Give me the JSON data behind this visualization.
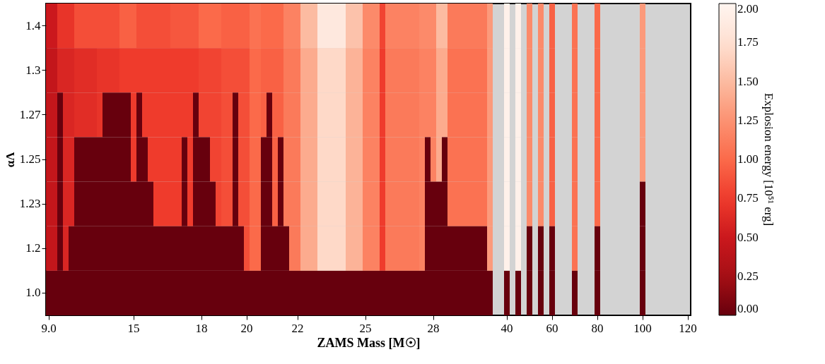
{
  "chart_data": {
    "type": "heatmap",
    "xlabel": "ZAMS Mass [M☉]",
    "ylabel": "αΛ",
    "clabel": "Explosion energy [10⁵¹ erg]",
    "categories": [
      "9.0",
      null,
      null,
      null,
      null,
      null,
      null,
      null,
      null,
      null,
      null,
      null,
      null,
      null,
      null,
      "15",
      null,
      null,
      null,
      null,
      null,
      null,
      null,
      null,
      null,
      null,
      null,
      "18",
      null,
      null,
      null,
      null,
      null,
      null,
      null,
      "20",
      null,
      null,
      null,
      null,
      null,
      null,
      null,
      null,
      "22",
      null,
      null,
      null,
      null,
      null,
      null,
      null,
      null,
      null,
      null,
      null,
      "25",
      null,
      null,
      null,
      null,
      null,
      null,
      null,
      null,
      null,
      null,
      null,
      "28",
      null,
      null,
      null,
      null,
      null,
      null,
      null,
      null,
      null,
      null,
      null,
      null,
      "40",
      null,
      null,
      null,
      null,
      null,
      null,
      null,
      "60",
      null,
      null,
      null,
      null,
      null,
      null,
      null,
      "80",
      null,
      null,
      null,
      null,
      null,
      null,
      null,
      "100",
      null,
      null,
      null,
      null,
      null,
      null,
      null,
      "120"
    ],
    "y_categories": [
      "1.4",
      "1.3",
      "1.27",
      "1.25",
      "1.23",
      "1.2",
      "1.0"
    ],
    "cells": [
      [
        0.5,
        0.5,
        0.7,
        0.7,
        0.7,
        0.85,
        0.85,
        0.85,
        0.85,
        0.85,
        0.85,
        0.85,
        0.85,
        0.95,
        0.95,
        0.95,
        0.85,
        0.85,
        0.85,
        0.85,
        0.85,
        0.85,
        0.9,
        0.9,
        0.9,
        0.9,
        0.9,
        1.0,
        1.0,
        1.0,
        1.0,
        0.95,
        0.95,
        0.95,
        0.95,
        0.95,
        1.05,
        1.05,
        1.0,
        1.0,
        1.0,
        1.0,
        1.15,
        1.15,
        1.15,
        1.5,
        1.5,
        1.5,
        1.85,
        1.85,
        1.85,
        1.85,
        1.85,
        1.55,
        1.55,
        1.55,
        1.2,
        1.2,
        1.2,
        0.8,
        1.15,
        1.15,
        1.15,
        1.15,
        1.15,
        1.15,
        1.2,
        1.2,
        1.2,
        1.5,
        1.5,
        1.1,
        1.1,
        1.1,
        1.1,
        1.1,
        1.1,
        1.1,
        1.3,
        null,
        null,
        1.95,
        null,
        1.95,
        null,
        1.2,
        null,
        1.2,
        null,
        0.95,
        null,
        null,
        null,
        1.05,
        null,
        null,
        null,
        1.0,
        null,
        null,
        null,
        null,
        null,
        null,
        null,
        1.3,
        null,
        null,
        null,
        null,
        null,
        null,
        null,
        null
      ],
      [
        0.45,
        0.45,
        0.6,
        0.6,
        0.6,
        0.65,
        0.65,
        0.65,
        0.65,
        0.7,
        0.7,
        0.7,
        0.7,
        0.75,
        0.75,
        0.75,
        0.75,
        0.75,
        0.75,
        0.75,
        0.75,
        0.75,
        0.75,
        0.75,
        0.75,
        0.75,
        0.75,
        0.8,
        0.8,
        0.8,
        0.8,
        0.85,
        0.85,
        0.85,
        0.85,
        0.85,
        1.0,
        1.0,
        0.95,
        0.95,
        0.95,
        0.95,
        1.1,
        1.1,
        1.1,
        1.4,
        1.4,
        1.4,
        1.7,
        1.7,
        1.7,
        1.7,
        1.7,
        1.45,
        1.45,
        1.45,
        1.15,
        1.15,
        1.15,
        0.75,
        1.1,
        1.1,
        1.1,
        1.1,
        1.1,
        1.1,
        1.15,
        1.15,
        1.15,
        1.4,
        1.4,
        1.05,
        1.05,
        1.05,
        1.05,
        1.05,
        1.05,
        1.05,
        1.3,
        null,
        null,
        1.95,
        null,
        1.95,
        null,
        1.2,
        null,
        1.2,
        null,
        0.95,
        null,
        null,
        null,
        1.05,
        null,
        null,
        null,
        1.0,
        null,
        null,
        null,
        null,
        null,
        null,
        null,
        1.3,
        null,
        null,
        null,
        null,
        null,
        null,
        null,
        null
      ],
      [
        0.45,
        0.45,
        0,
        0.6,
        0.6,
        0.65,
        0.65,
        0.65,
        0.65,
        0.7,
        0,
        0,
        0,
        0,
        0,
        0.75,
        0,
        0.75,
        0.75,
        0.75,
        0.75,
        0.75,
        0.75,
        0.75,
        0.75,
        0.75,
        0,
        0.8,
        0.8,
        0.8,
        0.8,
        0.85,
        0.85,
        0,
        0.85,
        0.85,
        1.0,
        1.0,
        0.95,
        0,
        0.95,
        0.95,
        1.1,
        1.1,
        1.1,
        1.4,
        1.4,
        1.4,
        1.7,
        1.7,
        1.7,
        1.7,
        1.7,
        1.45,
        1.45,
        1.45,
        1.15,
        1.15,
        1.15,
        0.75,
        1.1,
        1.1,
        1.1,
        1.1,
        1.1,
        1.1,
        1.15,
        1.15,
        1.15,
        1.4,
        1.4,
        1.05,
        1.05,
        1.05,
        1.05,
        1.05,
        1.05,
        1.05,
        1.3,
        null,
        null,
        1.95,
        null,
        1.95,
        null,
        1.2,
        null,
        1.2,
        null,
        0.95,
        null,
        null,
        null,
        1.05,
        null,
        null,
        null,
        1.0,
        null,
        null,
        null,
        null,
        null,
        null,
        null,
        1.3,
        null,
        null,
        null,
        null,
        null,
        null,
        null,
        null
      ],
      [
        0.45,
        0.45,
        0,
        0.6,
        0.6,
        0,
        0,
        0,
        0,
        0,
        0,
        0,
        0,
        0,
        0,
        0.75,
        0,
        0,
        0.75,
        0.75,
        0.75,
        0.75,
        0.75,
        0.75,
        0,
        0.75,
        0,
        0,
        0,
        0.8,
        0.8,
        0.85,
        0.85,
        0,
        0.85,
        0.85,
        1.0,
        1.0,
        0,
        0,
        0.95,
        0,
        1.1,
        1.1,
        1.1,
        1.4,
        1.4,
        1.4,
        1.7,
        1.7,
        1.7,
        1.7,
        1.7,
        1.45,
        1.45,
        1.45,
        1.15,
        1.15,
        1.15,
        0.75,
        1.1,
        1.1,
        1.1,
        1.1,
        1.1,
        1.1,
        1.15,
        0,
        1.15,
        1.4,
        0,
        1.05,
        1.05,
        1.05,
        1.05,
        1.05,
        1.05,
        1.05,
        1.3,
        null,
        null,
        1.95,
        null,
        1.95,
        null,
        1.2,
        null,
        1.2,
        null,
        0.95,
        null,
        null,
        null,
        1.05,
        null,
        null,
        null,
        1.0,
        null,
        null,
        null,
        null,
        null,
        null,
        null,
        1.3,
        null,
        null,
        null,
        null,
        null,
        null,
        null,
        null
      ],
      [
        0.45,
        0.45,
        0,
        0.6,
        0.6,
        0,
        0,
        0,
        0,
        0,
        0,
        0,
        0,
        0,
        0,
        0,
        0,
        0,
        0,
        0.75,
        0.75,
        0.75,
        0.75,
        0.75,
        0,
        0.75,
        0,
        0,
        0,
        0,
        0.8,
        0.85,
        0.85,
        0,
        0.85,
        0.85,
        1.0,
        1.0,
        0,
        0,
        0.95,
        0,
        1.1,
        1.1,
        1.1,
        1.4,
        1.4,
        1.4,
        1.7,
        1.7,
        1.7,
        1.7,
        1.7,
        1.45,
        1.45,
        1.45,
        1.15,
        1.15,
        1.15,
        0.75,
        1.1,
        1.1,
        1.1,
        1.1,
        1.1,
        1.1,
        1.15,
        0,
        0,
        0,
        0,
        1.05,
        1.05,
        1.05,
        1.05,
        1.05,
        1.05,
        1.05,
        1.3,
        null,
        null,
        1.95,
        null,
        1.95,
        null,
        1.2,
        null,
        1.2,
        null,
        0.95,
        null,
        null,
        null,
        1.05,
        null,
        null,
        null,
        1.0,
        null,
        null,
        null,
        null,
        null,
        null,
        null,
        0,
        null,
        null,
        null,
        null,
        null,
        null,
        null,
        null
      ],
      [
        0.45,
        0.45,
        0,
        0.6,
        0,
        0,
        0,
        0,
        0,
        0,
        0,
        0,
        0,
        0,
        0,
        0,
        0,
        0,
        0,
        0,
        0,
        0,
        0,
        0,
        0,
        0,
        0,
        0,
        0,
        0,
        0,
        0,
        0,
        0,
        0,
        0.85,
        1.0,
        1.0,
        0,
        0,
        0,
        0,
        0,
        1.1,
        1.1,
        1.4,
        1.4,
        1.4,
        1.7,
        1.7,
        1.7,
        1.7,
        1.7,
        1.45,
        1.45,
        1.45,
        1.15,
        1.15,
        1.15,
        0.75,
        1.1,
        1.1,
        1.1,
        1.1,
        1.1,
        1.1,
        1.15,
        0,
        0,
        0,
        0,
        0,
        0,
        0,
        0,
        0,
        0,
        0,
        1.3,
        null,
        null,
        1.95,
        null,
        1.95,
        null,
        0,
        null,
        0,
        null,
        0,
        null,
        null,
        null,
        1.05,
        null,
        null,
        null,
        0,
        null,
        null,
        null,
        null,
        null,
        null,
        null,
        0,
        null,
        null,
        null,
        null,
        null,
        null,
        null,
        null
      ],
      [
        0,
        0,
        0,
        0,
        0,
        0,
        0,
        0,
        0,
        0,
        0,
        0,
        0,
        0,
        0,
        0,
        0,
        0,
        0,
        0,
        0,
        0,
        0,
        0,
        0,
        0,
        0,
        0,
        0,
        0,
        0,
        0,
        0,
        0,
        0,
        0,
        0,
        0,
        0,
        0,
        0,
        0,
        0,
        0,
        0,
        0,
        0,
        0,
        0,
        0,
        0,
        0,
        0,
        0,
        0,
        0,
        0,
        0,
        0,
        0,
        0,
        0,
        0,
        0,
        0,
        0,
        0,
        0,
        0,
        0,
        0,
        0,
        0,
        0,
        0,
        0,
        0,
        0,
        0,
        null,
        null,
        0,
        null,
        0,
        null,
        0,
        null,
        0,
        null,
        0,
        null,
        null,
        null,
        0,
        null,
        null,
        null,
        0,
        null,
        null,
        null,
        null,
        null,
        null,
        null,
        0,
        null,
        null,
        null,
        null,
        null,
        null,
        null,
        null
      ]
    ],
    "clim": [
      0,
      2
    ],
    "cticks": [
      {
        "value": 0,
        "label": "0.00"
      },
      {
        "value": 0.25,
        "label": "0.25"
      },
      {
        "value": 0.5,
        "label": "0.50"
      },
      {
        "value": 0.75,
        "label": "0.75"
      },
      {
        "value": 1.0,
        "label": "1.00"
      },
      {
        "value": 1.25,
        "label": "1.25"
      },
      {
        "value": 1.5,
        "label": "1.50"
      },
      {
        "value": 1.75,
        "label": "1.75"
      },
      {
        "value": 2.0,
        "label": "2.00"
      }
    ]
  }
}
